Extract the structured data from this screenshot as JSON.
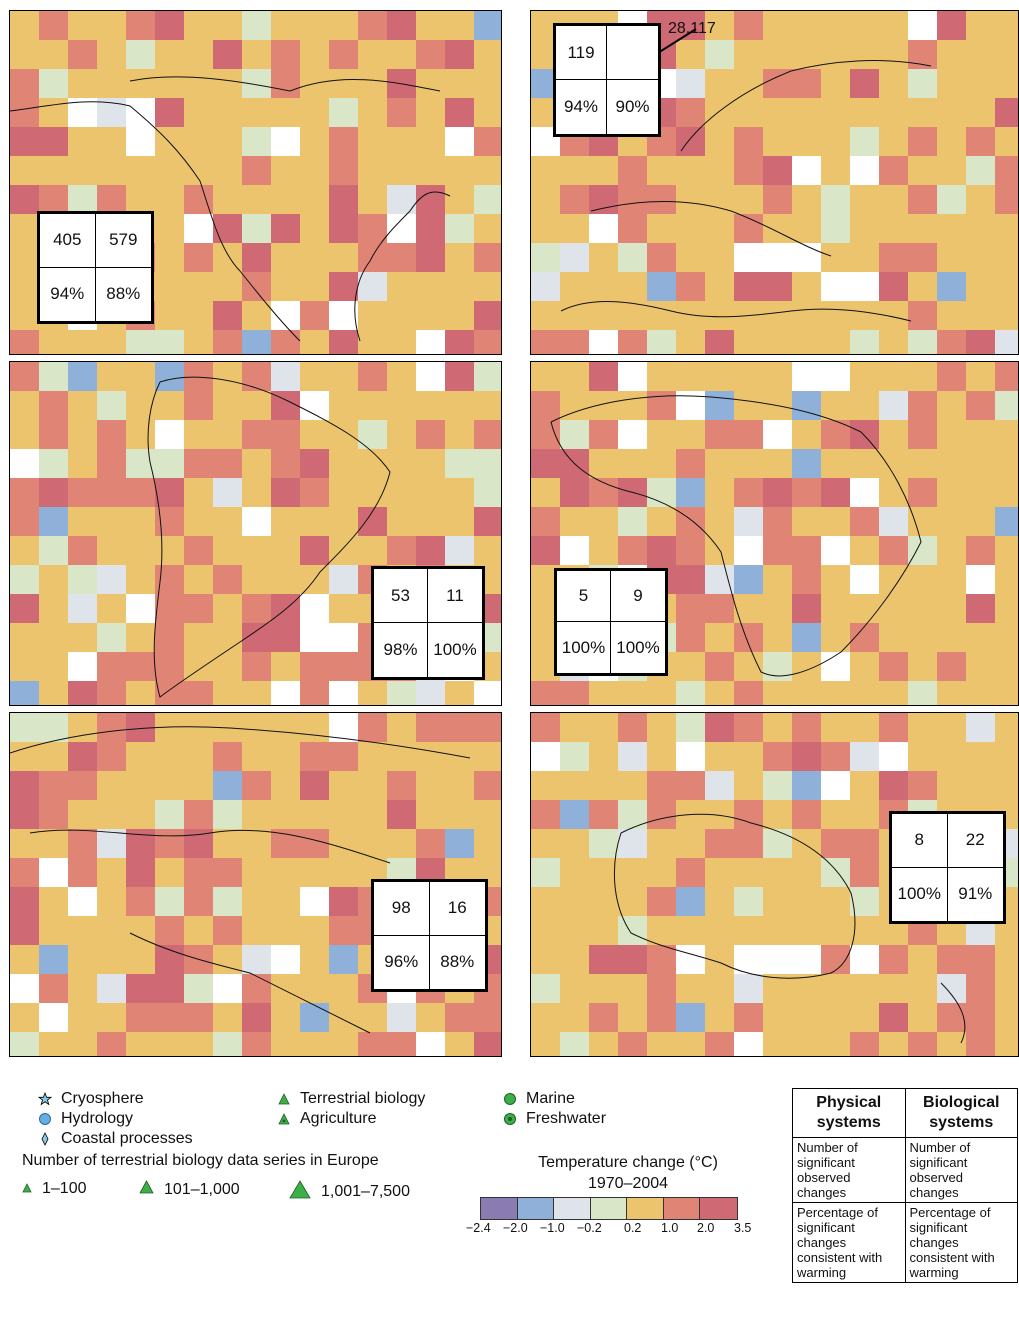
{
  "colors": {
    "scale": [
      "#8a7bb3",
      "#8fb0d8",
      "#dfe3ea",
      "#d9e6c8",
      "#ecc46e",
      "#e08476",
      "#cf6a74"
    ],
    "land_fill": "#ecc46e",
    "no_data": "#ffffff",
    "cryosphere": "#87cbe8",
    "hydrology": "#64aee0",
    "terrestrial_biology": "#3eae49",
    "marine": "#3eae49"
  },
  "regions": [
    {
      "name": "north-america",
      "physical_count": "405",
      "biological_count": "579",
      "physical_pct": "94%",
      "biological_pct": "88%"
    },
    {
      "name": "europe",
      "physical_count": "119",
      "biological_count": "",
      "physical_pct": "94%",
      "biological_pct": "90%",
      "callout": "28,117"
    },
    {
      "name": "latin-america",
      "physical_count": "53",
      "biological_count": "11",
      "physical_pct": "98%",
      "biological_pct": "100%"
    },
    {
      "name": "africa",
      "physical_count": "5",
      "biological_count": "9",
      "physical_pct": "100%",
      "biological_pct": "100%"
    },
    {
      "name": "asia",
      "physical_count": "98",
      "biological_count": "16",
      "physical_pct": "96%",
      "biological_pct": "88%"
    },
    {
      "name": "australia-new-zealand",
      "physical_count": "8",
      "biological_count": "22",
      "physical_pct": "100%",
      "biological_pct": "91%"
    }
  ],
  "legend": {
    "systems": [
      {
        "label": "Cryosphere",
        "icon": "star-icon"
      },
      {
        "label": "Hydrology",
        "icon": "circle-icon"
      },
      {
        "label": "Coastal processes",
        "icon": "diamond-icon"
      },
      {
        "label": "Terrestrial biology",
        "icon": "triangle-icon"
      },
      {
        "label": "Agriculture",
        "icon": "triangle-dot-icon"
      },
      {
        "label": "Marine",
        "icon": "filled-circle-icon"
      },
      {
        "label": "Freshwater",
        "icon": "ringed-circle-icon"
      }
    ],
    "size_title": "Number of terrestrial biology data series in Europe",
    "sizes": [
      "1–100",
      "101–1,000",
      "1,001–7,500"
    ],
    "temperature_title": "Temperature change (°C)",
    "temperature_period": "1970–2004",
    "temperature_ticks": [
      "−2.4",
      "−2.0",
      "−1.0",
      "−0.2",
      "0.2",
      "1.0",
      "2.0",
      "3.5"
    ]
  },
  "key_table": {
    "physical_header": "Physical systems",
    "biological_header": "Biological systems",
    "count_text": "Number of significant observed changes",
    "percentage_text": "Percentage of significant changes consistent with warming"
  }
}
